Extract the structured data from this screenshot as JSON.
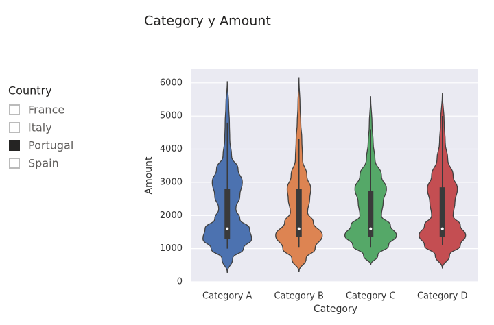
{
  "slicer": {
    "title": "Country",
    "items": [
      {
        "label": "France",
        "checked": false
      },
      {
        "label": "Italy",
        "checked": false
      },
      {
        "label": "Portugal",
        "checked": true
      },
      {
        "label": "Spain",
        "checked": false
      }
    ]
  },
  "chart_data": {
    "type": "violin",
    "title": "Category y Amount",
    "x_label": "Category",
    "y_label": "Amount",
    "categories": [
      "Category A",
      "Category B",
      "Category C",
      "Category D"
    ],
    "ylim": [
      0,
      6430
    ],
    "yticks": [
      0,
      1000,
      2000,
      3000,
      4000,
      5000,
      6000
    ],
    "grid": true,
    "violins": [
      {
        "color": "#4c72b0",
        "whisker": [
          1000,
          4800
        ],
        "box": [
          1300,
          2800
        ],
        "median": 1600,
        "profile_y": [
          270,
          700,
          1000,
          1300,
          1600,
          1900,
          2200,
          2600,
          3000,
          3400,
          3800,
          4300,
          4800,
          5300,
          6050
        ],
        "profile_w": [
          0,
          0.15,
          0.45,
          0.68,
          0.62,
          0.35,
          0.24,
          0.35,
          0.42,
          0.3,
          0.12,
          0.07,
          0.06,
          0.04,
          0
        ]
      },
      {
        "color": "#dd8452",
        "whisker": [
          1050,
          4300
        ],
        "box": [
          1350,
          2800
        ],
        "median": 1600,
        "profile_y": [
          300,
          700,
          1000,
          1400,
          1800,
          2100,
          2500,
          2800,
          3200,
          3700,
          4300,
          4800,
          5300,
          6150
        ],
        "profile_w": [
          0,
          0.2,
          0.45,
          0.65,
          0.4,
          0.24,
          0.3,
          0.33,
          0.22,
          0.1,
          0.08,
          0.05,
          0.03,
          0
        ]
      },
      {
        "color": "#55a868",
        "whisker": [
          1050,
          4600
        ],
        "box": [
          1350,
          2750
        ],
        "median": 1600,
        "profile_y": [
          500,
          800,
          1100,
          1400,
          1700,
          2000,
          2400,
          2800,
          3200,
          3700,
          4200,
          4700,
          5600
        ],
        "profile_w": [
          0,
          0.2,
          0.5,
          0.72,
          0.55,
          0.3,
          0.35,
          0.44,
          0.3,
          0.12,
          0.07,
          0.04,
          0
        ]
      },
      {
        "color": "#c44e52",
        "whisker": [
          1100,
          5000
        ],
        "box": [
          1350,
          2850
        ],
        "median": 1600,
        "profile_y": [
          400,
          800,
          1100,
          1400,
          1700,
          2000,
          2400,
          2800,
          3200,
          3700,
          4200,
          4800,
          5700
        ],
        "profile_w": [
          0,
          0.2,
          0.5,
          0.65,
          0.5,
          0.3,
          0.35,
          0.42,
          0.3,
          0.15,
          0.08,
          0.05,
          0
        ]
      }
    ]
  }
}
